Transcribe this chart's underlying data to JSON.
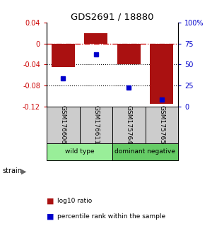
{
  "title": "GDS2691 / 18880",
  "samples": [
    "GSM176606",
    "GSM176611",
    "GSM175764",
    "GSM175765"
  ],
  "log10_ratio": [
    -0.045,
    0.02,
    -0.04,
    -0.115
  ],
  "percentile_rank": [
    33,
    62,
    22,
    8
  ],
  "ylim_left": [
    -0.12,
    0.04
  ],
  "ylim_right": [
    0,
    100
  ],
  "yticks_left": [
    -0.12,
    -0.08,
    -0.04,
    0.0,
    0.04
  ],
  "ytick_labels_left": [
    "-0.12",
    "-0.08",
    "-0.04",
    "0",
    "0.04"
  ],
  "yticks_right": [
    0,
    25,
    50,
    75,
    100
  ],
  "ytick_labels_right": [
    "0",
    "25",
    "50",
    "75",
    "100%"
  ],
  "hlines_dotted": [
    -0.04,
    -0.08
  ],
  "hline_dashdot": 0.0,
  "bar_color": "#aa1111",
  "dot_color": "#0000cc",
  "bar_width": 0.5,
  "groups": [
    {
      "label": "wild type",
      "samples": [
        0,
        1
      ],
      "color": "#99ee99"
    },
    {
      "label": "dominant negative",
      "samples": [
        2,
        3
      ],
      "color": "#66cc66"
    }
  ],
  "strain_label": "strain",
  "legend_bar_label": "log10 ratio",
  "legend_dot_label": "percentile rank within the sample",
  "background_color": "#ffffff",
  "plot_bg_color": "#ffffff",
  "label_panel_color": "#cccccc"
}
